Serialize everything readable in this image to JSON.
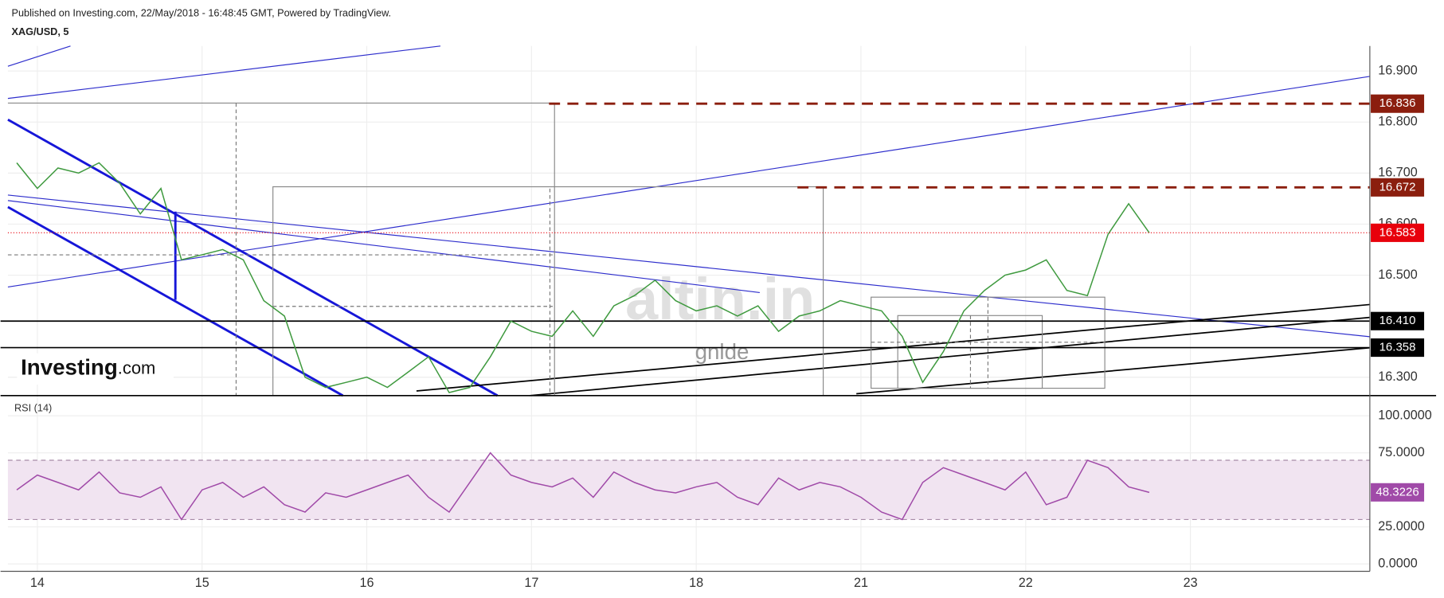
{
  "header": {
    "published": "Published on Investing.com, 22/May/2018 - 16:48:45 GMT, Powered by TradingView.",
    "symbol": "XAG/USD, 5"
  },
  "logo": {
    "main": "Investing",
    "suffix": ".com"
  },
  "watermark": {
    "main": "altin.in",
    "sub": "gnlde"
  },
  "chart_data": [
    {
      "type": "line",
      "color": "#3f9a3f",
      "categories": [
        null,
        "14",
        null,
        null,
        null,
        null,
        null,
        null,
        null,
        "15",
        null,
        null,
        null,
        null,
        null,
        null,
        null,
        "16",
        null,
        null,
        null,
        null,
        null,
        null,
        null,
        "17",
        null,
        null,
        null,
        null,
        null,
        null,
        null,
        "18",
        null,
        null,
        null,
        null,
        null,
        null,
        null,
        "21",
        null,
        null,
        null,
        null,
        null,
        null,
        null,
        "22",
        null,
        null,
        null,
        null,
        null,
        null,
        null,
        "23",
        null,
        null,
        null,
        null,
        null,
        null,
        null,
        null
      ],
      "values": [
        16.72,
        16.67,
        16.71,
        16.7,
        16.72,
        16.68,
        16.62,
        16.67,
        16.53,
        16.54,
        16.55,
        16.53,
        16.45,
        16.42,
        16.3,
        16.28,
        16.29,
        16.3,
        16.28,
        16.31,
        16.34,
        16.27,
        16.28,
        16.34,
        16.41,
        16.39,
        16.38,
        16.43,
        16.38,
        16.44,
        16.46,
        16.49,
        16.45,
        16.43,
        16.44,
        16.42,
        16.44,
        16.39,
        16.42,
        16.43,
        16.45,
        16.44,
        16.43,
        16.38,
        16.29,
        16.35,
        16.43,
        16.47,
        16.5,
        16.51,
        16.53,
        16.47,
        16.46,
        16.58,
        16.64,
        16.583,
        null,
        null,
        null,
        null,
        null,
        null,
        null,
        null,
        null,
        null
      ],
      "ylim": [
        16.264,
        16.949
      ],
      "yticks": [
        {
          "value": 16.9,
          "label": "16.900"
        },
        {
          "value": 16.8,
          "label": "16.800"
        },
        {
          "value": 16.7,
          "label": "16.700"
        },
        {
          "value": 16.6,
          "label": "16.600"
        },
        {
          "value": 16.5,
          "label": "16.500"
        },
        {
          "value": 16.3,
          "label": "16.300"
        }
      ],
      "last_color": "#e8000b",
      "levels": [
        {
          "value": 16.836,
          "label": "16.836",
          "color": "#8b1e0e",
          "style": "dashed"
        },
        {
          "value": 16.672,
          "label": "16.672",
          "color": "#8b1e0e",
          "style": "dashed"
        },
        {
          "value": 16.41,
          "label": "16.410",
          "color": "#000000",
          "style": "solid"
        },
        {
          "value": 16.358,
          "label": "16.358",
          "color": "#000000",
          "style": "solid"
        }
      ]
    },
    {
      "type": "line",
      "title": "RSI (14)",
      "color": "#a04aa8",
      "values": [
        50,
        60,
        55,
        50,
        62,
        48,
        45,
        52,
        30,
        50,
        55,
        45,
        52,
        40,
        35,
        48,
        45,
        50,
        55,
        60,
        45,
        35,
        55,
        75,
        60,
        55,
        52,
        58,
        45,
        62,
        55,
        50,
        48,
        52,
        55,
        45,
        40,
        58,
        50,
        55,
        52,
        45,
        35,
        30,
        55,
        65,
        60,
        55,
        50,
        62,
        40,
        45,
        70,
        65,
        52,
        48.3226,
        null,
        null,
        null,
        null,
        null,
        null,
        null,
        null,
        null,
        null
      ],
      "ylim": [
        -5,
        109.3
      ],
      "yticks": [
        {
          "value": 100,
          "label": "100.0000"
        },
        {
          "value": 75,
          "label": "75.0000"
        },
        {
          "value": 25,
          "label": "25.0000"
        },
        {
          "value": 0,
          "label": "0.0000"
        }
      ],
      "band": [
        30,
        70
      ],
      "band_color": "#f1e4f1"
    }
  ]
}
